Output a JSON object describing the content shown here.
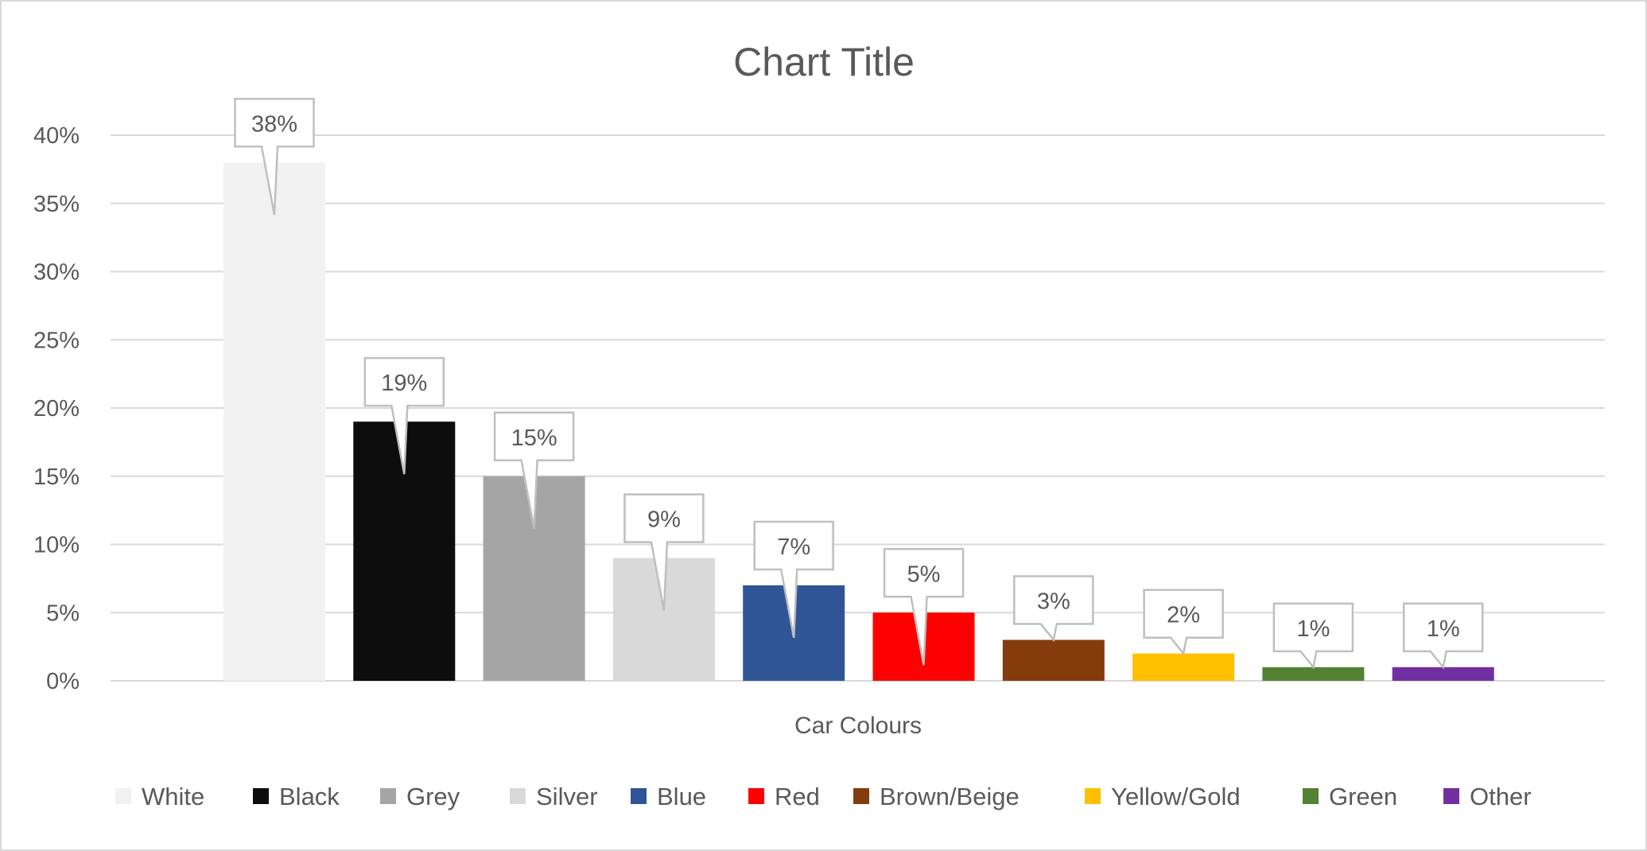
{
  "chart_data": {
    "type": "bar",
    "title": "Chart Title",
    "xlabel": "Car Colours",
    "ylabel": "",
    "ylim": [
      0,
      0.4
    ],
    "y_ticks": [
      "0%",
      "5%",
      "10%",
      "15%",
      "20%",
      "25%",
      "30%",
      "35%",
      "40%"
    ],
    "grid": true,
    "legend_position": "bottom",
    "categories": [
      "White",
      "Black",
      "Grey",
      "Silver",
      "Blue",
      "Red",
      "Brown/Beige",
      "Yellow/Gold",
      "Green",
      "Other"
    ],
    "values": [
      0.38,
      0.19,
      0.15,
      0.09,
      0.07,
      0.05,
      0.03,
      0.02,
      0.01,
      0.01
    ],
    "data_labels": [
      "38%",
      "19%",
      "15%",
      "9%",
      "7%",
      "5%",
      "3%",
      "2%",
      "1%",
      "1%"
    ],
    "colors": [
      "#f2f2f2",
      "#0d0d0d",
      "#a5a5a5",
      "#d9d9d9",
      "#2f5597",
      "#ff0000",
      "#843c0c",
      "#ffc000",
      "#548235",
      "#7030a0"
    ]
  }
}
